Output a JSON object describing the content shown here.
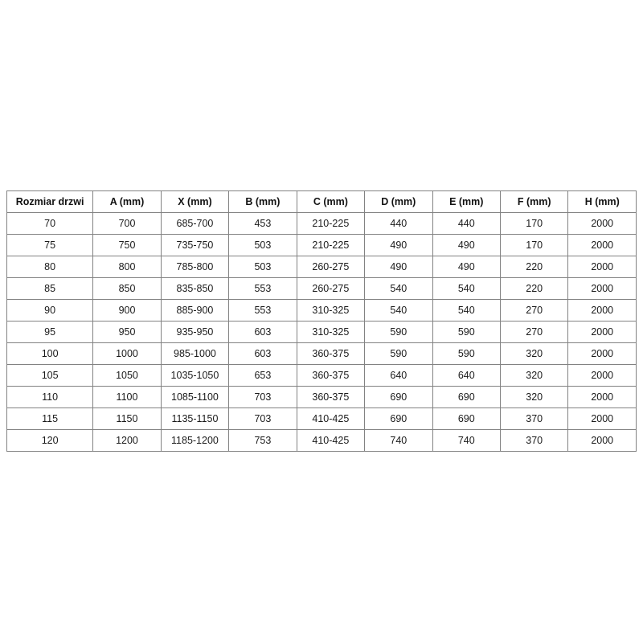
{
  "page": {
    "background_color": "#ffffff",
    "border_color": "#828282"
  },
  "table": {
    "name": "door-dimensions-table",
    "headers": [
      "Rozmiar drzwi",
      "A (mm)",
      "X (mm)",
      "B (mm)",
      "C (mm)",
      "D (mm)",
      "E (mm)",
      "F (mm)",
      "H (mm)"
    ],
    "rows": [
      [
        "70",
        "700",
        "685-700",
        "453",
        "210-225",
        "440",
        "440",
        "170",
        "2000"
      ],
      [
        "75",
        "750",
        "735-750",
        "503",
        "210-225",
        "490",
        "490",
        "170",
        "2000"
      ],
      [
        "80",
        "800",
        "785-800",
        "503",
        "260-275",
        "490",
        "490",
        "220",
        "2000"
      ],
      [
        "85",
        "850",
        "835-850",
        "553",
        "260-275",
        "540",
        "540",
        "220",
        "2000"
      ],
      [
        "90",
        "900",
        "885-900",
        "553",
        "310-325",
        "540",
        "540",
        "270",
        "2000"
      ],
      [
        "95",
        "950",
        "935-950",
        "603",
        "310-325",
        "590",
        "590",
        "270",
        "2000"
      ],
      [
        "100",
        "1000",
        "985-1000",
        "603",
        "360-375",
        "590",
        "590",
        "320",
        "2000"
      ],
      [
        "105",
        "1050",
        "1035-1050",
        "653",
        "360-375",
        "640",
        "640",
        "320",
        "2000"
      ],
      [
        "110",
        "1100",
        "1085-1100",
        "703",
        "360-375",
        "690",
        "690",
        "320",
        "2000"
      ],
      [
        "115",
        "1150",
        "1135-1150",
        "703",
        "410-425",
        "690",
        "690",
        "370",
        "2000"
      ],
      [
        "120",
        "1200",
        "1185-1200",
        "753",
        "410-425",
        "740",
        "740",
        "370",
        "2000"
      ]
    ]
  }
}
